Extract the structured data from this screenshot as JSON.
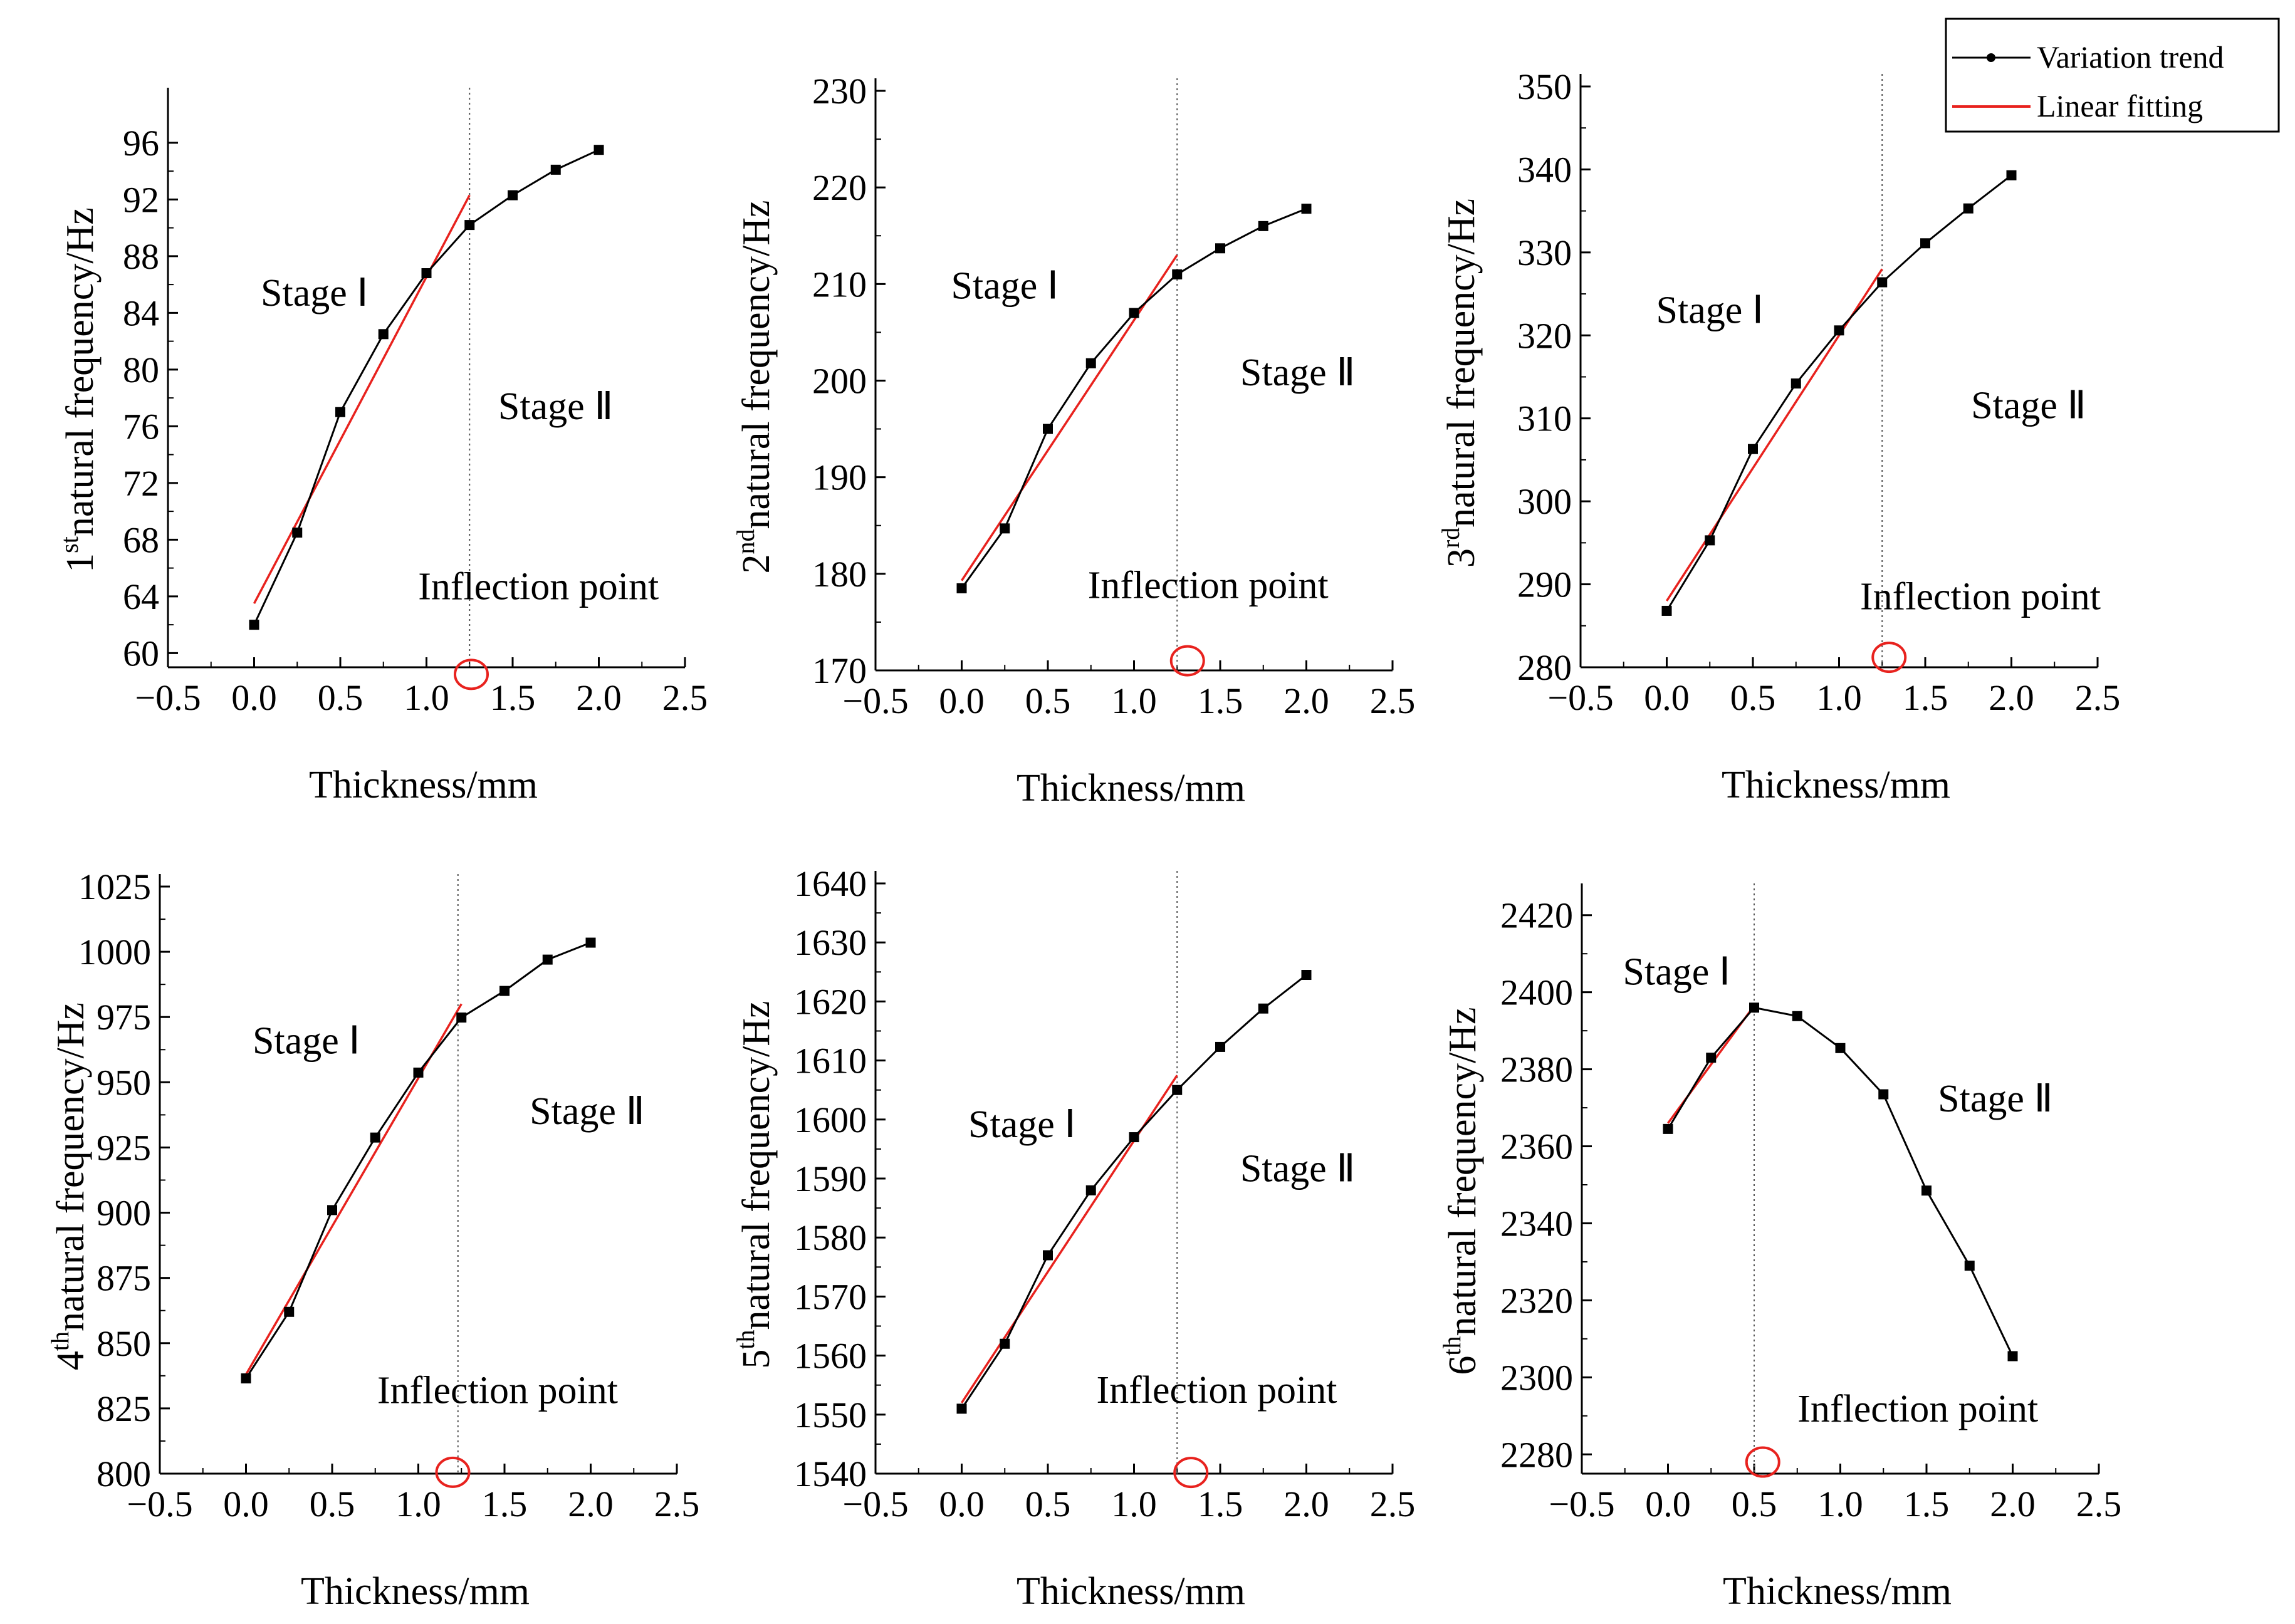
{
  "legend": {
    "items": [
      {
        "label": "Variation trend",
        "color": "#000000"
      },
      {
        "label": "Linear fitting",
        "color": "#e8221e"
      }
    ]
  },
  "chart_data": [
    {
      "type": "line",
      "ylabel_sup": "st",
      "ylabel_num": "1",
      "ylabel_text": "natural frequency/Hz",
      "xlabel": "Thickness/mm",
      "xlim": [
        -0.5,
        2.5
      ],
      "ylim": [
        59,
        99
      ],
      "xticks": [
        -0.5,
        0.0,
        0.5,
        1.0,
        1.5,
        2.0,
        2.5
      ],
      "xtick_labels": [
        "−0.5",
        "0.0",
        "0.5",
        "1.0",
        "1.5",
        "2.0",
        "2.5"
      ],
      "yticks": [
        60,
        64,
        68,
        72,
        76,
        80,
        84,
        88,
        92,
        96
      ],
      "ytick_labels": [
        "60",
        "64",
        "68",
        "72",
        "76",
        "80",
        "84",
        "88",
        "92",
        "96"
      ],
      "x": [
        0,
        0.25,
        0.5,
        0.75,
        1.0,
        1.25,
        1.5,
        1.75,
        2.0
      ],
      "series": [
        {
          "name": "Variation trend",
          "values": [
            62.0,
            68.5,
            77.0,
            82.5,
            86.8,
            90.2,
            92.3,
            94.1,
            95.5
          ]
        }
      ],
      "fit": {
        "x": [
          0,
          1.25
        ],
        "y": [
          63.5,
          92.3
        ]
      },
      "inflection_x": 1.25,
      "stage1_label": "Stage Ⅰ",
      "stage1_pos": [
        0.35,
        84.5
      ],
      "stage2_label": "Stage Ⅱ",
      "stage2_pos": [
        1.75,
        76.5
      ],
      "inflection_label": "Inflection point",
      "inflection_pos": [
        1.65,
        63.8
      ],
      "circle_pos": [
        1.26,
        58.5
      ]
    },
    {
      "type": "line",
      "ylabel_sup": "nd",
      "ylabel_num": "2",
      "ylabel_text": "natural frequency/Hz",
      "xlabel": "Thickness/mm",
      "xlim": [
        -0.5,
        2.5
      ],
      "ylim": [
        170,
        230
      ],
      "xticks": [
        -0.5,
        0.0,
        0.5,
        1.0,
        1.5,
        2.0,
        2.5
      ],
      "xtick_labels": [
        "−0.5",
        "0.0",
        "0.5",
        "1.0",
        "1.5",
        "2.0",
        "2.5"
      ],
      "yticks": [
        170,
        180,
        190,
        200,
        210,
        220,
        230
      ],
      "ytick_labels": [
        "170",
        "180",
        "190",
        "200",
        "210",
        "220",
        "230"
      ],
      "x": [
        0,
        0.25,
        0.5,
        0.75,
        1.0,
        1.25,
        1.5,
        1.75,
        2.0
      ],
      "series": [
        {
          "name": "Variation trend",
          "values": [
            178.5,
            184.7,
            195.0,
            201.8,
            207.0,
            211.0,
            213.7,
            216.0,
            217.8
          ]
        }
      ],
      "fit": {
        "x": [
          0,
          1.25
        ],
        "y": [
          179.3,
          213.0
        ]
      },
      "inflection_x": 1.25,
      "stage1_label": "Stage Ⅰ",
      "stage1_pos": [
        0.25,
        208.5
      ],
      "stage2_label": "Stage Ⅱ",
      "stage2_pos": [
        1.95,
        199.5
      ],
      "inflection_label": "Inflection point",
      "inflection_pos": [
        1.43,
        177.5
      ],
      "circle_pos": [
        1.31,
        171.0
      ]
    },
    {
      "type": "line",
      "ylabel_sup": "rd",
      "ylabel_num": "3",
      "ylabel_text": "natural frequency/Hz",
      "xlabel": "Thickness/mm",
      "xlim": [
        -0.5,
        2.5
      ],
      "ylim": [
        280,
        350
      ],
      "xticks": [
        -0.5,
        0.0,
        0.5,
        1.0,
        1.5,
        2.0,
        2.5
      ],
      "xtick_labels": [
        "−0.5",
        "0.0",
        "0.5",
        "1.0",
        "1.5",
        "2.0",
        "2.5"
      ],
      "yticks": [
        280,
        290,
        300,
        310,
        320,
        330,
        340,
        350
      ],
      "ytick_labels": [
        "280",
        "290",
        "300",
        "310",
        "320",
        "330",
        "340",
        "350"
      ],
      "x": [
        0,
        0.25,
        0.5,
        0.75,
        1.0,
        1.25,
        1.5,
        1.75,
        2.0
      ],
      "series": [
        {
          "name": "Variation trend",
          "values": [
            286.8,
            295.3,
            306.3,
            314.2,
            320.6,
            326.4,
            331.1,
            335.3,
            339.3
          ]
        }
      ],
      "fit": {
        "x": [
          0,
          1.25
        ],
        "y": [
          288.0,
          328.0
        ]
      },
      "inflection_x": 1.25,
      "stage1_label": "Stage Ⅰ",
      "stage1_pos": [
        0.25,
        321.5
      ],
      "stage2_label": "Stage Ⅱ",
      "stage2_pos": [
        2.1,
        310.0
      ],
      "inflection_label": "Inflection point",
      "inflection_pos": [
        1.82,
        287.0
      ],
      "circle_pos": [
        1.29,
        281.2
      ]
    },
    {
      "type": "line",
      "ylabel_sup": "th",
      "ylabel_num": "4",
      "ylabel_text": "natural frequency/Hz",
      "xlabel": "Thickness/mm",
      "xlim": [
        -0.5,
        2.5
      ],
      "ylim": [
        800,
        1025
      ],
      "xticks": [
        -0.5,
        0.0,
        0.5,
        1.0,
        1.5,
        2.0,
        2.5
      ],
      "xtick_labels": [
        "−0.5",
        "0.0",
        "0.5",
        "1.0",
        "1.5",
        "2.0",
        "2.5"
      ],
      "yticks": [
        800,
        825,
        850,
        875,
        900,
        925,
        950,
        975,
        1000,
        1025
      ],
      "ytick_labels": [
        "800",
        "825",
        "850",
        "875",
        "900",
        "925",
        "950",
        "975",
        "1000",
        "1025"
      ],
      "x": [
        0,
        0.25,
        0.5,
        0.75,
        1.0,
        1.25,
        1.5,
        1.75,
        2.0
      ],
      "series": [
        {
          "name": "Variation trend",
          "values": [
            836.5,
            862.0,
            901.0,
            928.8,
            953.7,
            974.8,
            985.0,
            997.0,
            1003.5
          ]
        }
      ],
      "fit": {
        "x": [
          0,
          1.25
        ],
        "y": [
          838.0,
          980.0
        ]
      },
      "inflection_x": 1.23,
      "stage1_label": "Stage Ⅰ",
      "stage1_pos": [
        0.35,
        961.0
      ],
      "stage2_label": "Stage Ⅱ",
      "stage2_pos": [
        1.98,
        934.0
      ],
      "inflection_label": "Inflection point",
      "inflection_pos": [
        1.46,
        827.0
      ],
      "circle_pos": [
        1.2,
        800.5
      ]
    },
    {
      "type": "line",
      "ylabel_sup": "th",
      "ylabel_num": "5",
      "ylabel_text": "natural frequency/Hz",
      "xlabel": "Thickness/mm",
      "xlim": [
        -0.5,
        2.5
      ],
      "ylim": [
        1540,
        1640
      ],
      "xticks": [
        -0.5,
        0.0,
        0.5,
        1.0,
        1.5,
        2.0,
        2.5
      ],
      "xtick_labels": [
        "−0.5",
        "0.0",
        "0.5",
        "1.0",
        "1.5",
        "2.0",
        "2.5"
      ],
      "yticks": [
        1540,
        1550,
        1560,
        1570,
        1580,
        1590,
        1600,
        1610,
        1620,
        1630,
        1640
      ],
      "ytick_labels": [
        "1540",
        "1550",
        "1560",
        "1570",
        "1580",
        "1590",
        "1600",
        "1610",
        "1620",
        "1630",
        "1640"
      ],
      "x": [
        0,
        0.25,
        0.5,
        0.75,
        1.0,
        1.25,
        1.5,
        1.75,
        2.0
      ],
      "series": [
        {
          "name": "Variation trend",
          "values": [
            1551.0,
            1562.0,
            1577.0,
            1588.0,
            1597.0,
            1605.0,
            1612.3,
            1618.8,
            1624.5
          ]
        }
      ],
      "fit": {
        "x": [
          0,
          1.25
        ],
        "y": [
          1552.0,
          1607.5
        ]
      },
      "inflection_x": 1.25,
      "stage1_label": "Stage Ⅰ",
      "stage1_pos": [
        0.35,
        1597.0
      ],
      "stage2_label": "Stage Ⅱ",
      "stage2_pos": [
        1.95,
        1589.5
      ],
      "inflection_label": "Inflection point",
      "inflection_pos": [
        1.48,
        1552.0
      ],
      "circle_pos": [
        1.33,
        1540.2
      ]
    },
    {
      "type": "line",
      "ylabel_sup": "th",
      "ylabel_num": "6",
      "ylabel_text": "natural frequency/Hz",
      "xlabel": "Thickness/mm",
      "xlim": [
        -0.5,
        2.5
      ],
      "ylim": [
        2275,
        2425
      ],
      "xticks": [
        -0.5,
        0.0,
        0.5,
        1.0,
        1.5,
        2.0,
        2.5
      ],
      "xtick_labels": [
        "−0.5",
        "0.0",
        "0.5",
        "1.0",
        "1.5",
        "2.0",
        "2.5"
      ],
      "yticks": [
        2280,
        2300,
        2320,
        2340,
        2360,
        2380,
        2400,
        2420
      ],
      "ytick_labels": [
        "2280",
        "2300",
        "2320",
        "2340",
        "2360",
        "2380",
        "2400",
        "2420"
      ],
      "x": [
        0,
        0.25,
        0.5,
        0.75,
        1.0,
        1.25,
        1.5,
        1.75,
        2.0
      ],
      "series": [
        {
          "name": "Variation trend",
          "values": [
            2364.5,
            2383.0,
            2396.0,
            2393.8,
            2385.5,
            2373.5,
            2348.5,
            2329.0,
            2305.5
          ]
        }
      ],
      "fit": {
        "x": [
          0,
          0.5
        ],
        "y": [
          2366.0,
          2396.5
        ]
      },
      "inflection_x": 0.5,
      "stage1_label": "Stage Ⅰ",
      "stage1_pos": [
        0.05,
        2402.0
      ],
      "stage2_label": "Stage Ⅱ",
      "stage2_pos": [
        1.9,
        2369.0
      ],
      "inflection_label": "Inflection point",
      "inflection_pos": [
        1.45,
        2288.5
      ],
      "circle_pos": [
        0.55,
        2278.0
      ]
    }
  ]
}
